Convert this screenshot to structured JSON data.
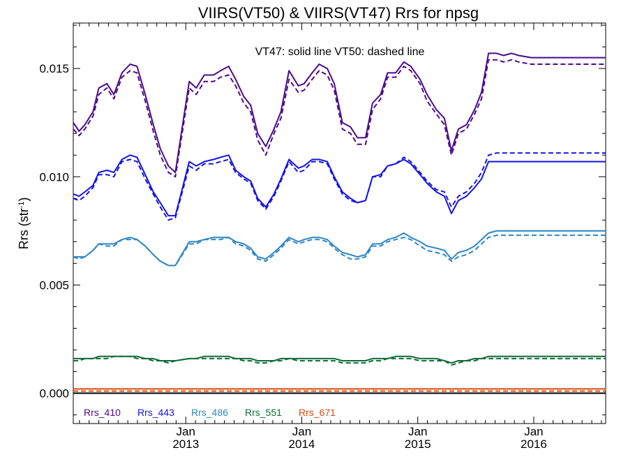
{
  "chart_data": {
    "type": "line",
    "title": "VIIRS(VT50) & VIIRS(VT47)  Rrs for npsg",
    "subtitle": "VT47: solid line   VT50: dashed line",
    "ylabel": "Rrs (str",
    "ylabel_sup": "-1",
    "ylabel_close": ")",
    "ylim": [
      -0.0014,
      0.0171
    ],
    "xlim": [
      2012.03,
      2016.62
    ],
    "x_major_ticks": [
      {
        "x": 2013.0,
        "month": "Jan",
        "year": "2013"
      },
      {
        "x": 2014.0,
        "month": "Jan",
        "year": "2014"
      },
      {
        "x": 2015.0,
        "month": "Jan",
        "year": "2015"
      },
      {
        "x": 2016.0,
        "month": "Jan",
        "year": "2016"
      }
    ],
    "y_ticks": [
      {
        "value": 0.0,
        "label": "0.000"
      },
      {
        "value": 0.005,
        "label": "0.005"
      },
      {
        "value": 0.01,
        "label": "0.010"
      },
      {
        "value": 0.015,
        "label": "0.015"
      }
    ],
    "zero_line": true,
    "grid": false,
    "legend_position": "bottom-left",
    "colors": {
      "Rrs_410": "#4B0A8C",
      "Rrs_443": "#1414E6",
      "Rrs_486": "#2E86C6",
      "Rrs_551": "#0D6B36",
      "Rrs_671": "#D94A12"
    },
    "x": [
      2012.03,
      2012.08,
      2012.13,
      2012.2,
      2012.25,
      2012.32,
      2012.38,
      2012.45,
      2012.52,
      2012.58,
      2012.65,
      2012.72,
      2012.78,
      2012.85,
      2012.91,
      2013.03,
      2013.09,
      2013.16,
      2013.24,
      2013.3,
      2013.37,
      2013.43,
      2013.5,
      2013.56,
      2013.62,
      2013.69,
      2013.76,
      2013.82,
      2013.89,
      2013.97,
      2014.02,
      2014.09,
      2014.15,
      2014.22,
      2014.28,
      2014.35,
      2014.42,
      2014.48,
      2014.55,
      2014.61,
      2014.68,
      2014.74,
      2014.81,
      2014.88,
      2014.94,
      2015.02,
      2015.08,
      2015.16,
      2015.23,
      2015.29,
      2015.35,
      2015.42,
      2015.49,
      2015.55,
      2015.61,
      2015.68,
      2015.74,
      2015.81,
      2015.87,
      2015.98,
      2016.02,
      2016.09,
      2016.16,
      2016.23,
      2016.29,
      2016.37,
      2016.42,
      2016.5,
      2016.55,
      2016.62
    ],
    "series": [
      {
        "name": "Rrs_410",
        "style": "solid",
        "values": [
          0.0125,
          0.0121,
          0.0124,
          0.013,
          0.0141,
          0.0143,
          0.0138,
          0.0148,
          0.0152,
          0.0151,
          0.0138,
          0.0124,
          0.0113,
          0.0105,
          0.0102,
          0.0144,
          0.0141,
          0.0147,
          0.0147,
          0.0149,
          0.0151,
          0.0145,
          0.0137,
          0.0133,
          0.012,
          0.0114,
          0.0122,
          0.013,
          0.0149,
          0.0142,
          0.0143,
          0.0148,
          0.0152,
          0.015,
          0.0143,
          0.0125,
          0.0123,
          0.0118,
          0.0118,
          0.0134,
          0.0138,
          0.0148,
          0.0148,
          0.0153,
          0.0151,
          0.0145,
          0.0138,
          0.0131,
          0.0127,
          0.0112,
          0.0122,
          0.0124,
          0.0131,
          0.0139,
          0.0157,
          0.0157,
          0.0156,
          0.0157,
          0.0156,
          0.0155,
          0.0155,
          0.0155,
          0.0155,
          0.0155,
          0.0155,
          0.0155,
          0.0155,
          0.0155,
          0.0155,
          0.0155
        ]
      },
      {
        "name": "Rrs_410",
        "style": "dashed",
        "values": [
          0.0122,
          0.0119,
          0.0122,
          0.0128,
          0.0138,
          0.0141,
          0.0136,
          0.0146,
          0.0149,
          0.0148,
          0.0135,
          0.0121,
          0.011,
          0.0102,
          0.01,
          0.0141,
          0.0138,
          0.0144,
          0.0144,
          0.0146,
          0.0147,
          0.0142,
          0.0134,
          0.013,
          0.0117,
          0.011,
          0.012,
          0.0127,
          0.0145,
          0.0139,
          0.014,
          0.0145,
          0.0149,
          0.0147,
          0.014,
          0.0122,
          0.012,
          0.0115,
          0.0115,
          0.0131,
          0.0136,
          0.0146,
          0.0146,
          0.0151,
          0.0149,
          0.0143,
          0.0135,
          0.0129,
          0.0124,
          0.011,
          0.012,
          0.0122,
          0.0129,
          0.0136,
          0.0154,
          0.0154,
          0.0153,
          0.0154,
          0.0153,
          0.0152,
          0.0152,
          0.0152,
          0.0152,
          0.0152,
          0.0152,
          0.0152,
          0.0152,
          0.0152,
          0.0152,
          0.0152
        ]
      },
      {
        "name": "Rrs_443",
        "style": "solid",
        "values": [
          0.0092,
          0.0091,
          0.0093,
          0.0096,
          0.0102,
          0.0103,
          0.0102,
          0.0108,
          0.011,
          0.0109,
          0.0101,
          0.0093,
          0.0088,
          0.0082,
          0.0082,
          0.0107,
          0.0105,
          0.0107,
          0.0108,
          0.0109,
          0.011,
          0.0103,
          0.01,
          0.0098,
          0.009,
          0.0086,
          0.0092,
          0.0099,
          0.0108,
          0.0104,
          0.0105,
          0.0108,
          0.0108,
          0.0107,
          0.01,
          0.0093,
          0.009,
          0.0088,
          0.0089,
          0.01,
          0.0101,
          0.0105,
          0.0106,
          0.0108,
          0.0106,
          0.0101,
          0.0097,
          0.0093,
          0.0091,
          0.0083,
          0.0089,
          0.0091,
          0.0095,
          0.0099,
          0.0107,
          0.0107,
          0.0107,
          0.0107,
          0.0107,
          0.0107,
          0.0107,
          0.0107,
          0.0107,
          0.0107,
          0.0107,
          0.0107,
          0.0107,
          0.0107,
          0.0107,
          0.0107
        ]
      },
      {
        "name": "Rrs_443",
        "style": "dashed",
        "values": [
          0.009,
          0.0089,
          0.0091,
          0.0095,
          0.0101,
          0.0101,
          0.01,
          0.0107,
          0.0108,
          0.0107,
          0.0099,
          0.0092,
          0.0086,
          0.008,
          0.0081,
          0.0105,
          0.0103,
          0.0106,
          0.0106,
          0.0107,
          0.0108,
          0.0102,
          0.0099,
          0.0097,
          0.0089,
          0.0085,
          0.0091,
          0.0098,
          0.0107,
          0.0102,
          0.0103,
          0.0107,
          0.0107,
          0.0106,
          0.0099,
          0.0092,
          0.0089,
          0.0088,
          0.0089,
          0.01,
          0.01,
          0.0105,
          0.0106,
          0.0109,
          0.0107,
          0.0102,
          0.0098,
          0.0094,
          0.0093,
          0.0086,
          0.0091,
          0.0093,
          0.0097,
          0.0102,
          0.011,
          0.0111,
          0.0111,
          0.0111,
          0.0111,
          0.0111,
          0.0111,
          0.0111,
          0.0111,
          0.0111,
          0.0111,
          0.0111,
          0.0111,
          0.0111,
          0.0111,
          0.0111
        ]
      },
      {
        "name": "Rrs_486",
        "style": "solid",
        "values": [
          0.0063,
          0.0063,
          0.0063,
          0.0066,
          0.0069,
          0.0069,
          0.0069,
          0.0071,
          0.0072,
          0.0071,
          0.0068,
          0.0064,
          0.0061,
          0.0059,
          0.0059,
          0.007,
          0.007,
          0.0071,
          0.0072,
          0.0072,
          0.0072,
          0.007,
          0.0069,
          0.0067,
          0.0063,
          0.0062,
          0.0065,
          0.0068,
          0.0072,
          0.007,
          0.0071,
          0.0072,
          0.0072,
          0.0071,
          0.0068,
          0.0065,
          0.0064,
          0.0063,
          0.0064,
          0.0069,
          0.0069,
          0.0071,
          0.0072,
          0.0074,
          0.0072,
          0.007,
          0.0068,
          0.0067,
          0.0066,
          0.0062,
          0.0065,
          0.0066,
          0.0068,
          0.0071,
          0.0074,
          0.0075,
          0.0075,
          0.0075,
          0.0075,
          0.0075,
          0.0075,
          0.0075,
          0.0075,
          0.0075,
          0.0075,
          0.0075,
          0.0075,
          0.0075,
          0.0075,
          0.0075
        ]
      },
      {
        "name": "Rrs_486",
        "style": "dashed",
        "values": [
          0.0063,
          0.0062,
          0.0063,
          0.0066,
          0.0069,
          0.0068,
          0.0068,
          0.0071,
          0.0071,
          0.0071,
          0.0068,
          0.0064,
          0.0061,
          0.0059,
          0.0059,
          0.0069,
          0.0069,
          0.0071,
          0.0071,
          0.0071,
          0.0072,
          0.0069,
          0.0068,
          0.0066,
          0.0062,
          0.0061,
          0.0064,
          0.0067,
          0.0071,
          0.0069,
          0.007,
          0.0071,
          0.0071,
          0.007,
          0.0067,
          0.0064,
          0.0062,
          0.0062,
          0.0063,
          0.0068,
          0.0068,
          0.007,
          0.0071,
          0.0072,
          0.0071,
          0.0068,
          0.0066,
          0.0065,
          0.0064,
          0.0061,
          0.0063,
          0.0064,
          0.0066,
          0.0069,
          0.0072,
          0.0073,
          0.0073,
          0.0073,
          0.0073,
          0.0073,
          0.0073,
          0.0073,
          0.0073,
          0.0073,
          0.0073,
          0.0073,
          0.0073,
          0.0073,
          0.0073,
          0.0073
        ]
      },
      {
        "name": "Rrs_551",
        "style": "solid",
        "values": [
          0.0016,
          0.0016,
          0.0016,
          0.0016,
          0.0017,
          0.0017,
          0.0017,
          0.0017,
          0.0017,
          0.0017,
          0.0016,
          0.0016,
          0.0015,
          0.0015,
          0.0015,
          0.0016,
          0.0016,
          0.0017,
          0.0017,
          0.0017,
          0.0017,
          0.0016,
          0.0016,
          0.0016,
          0.0015,
          0.0015,
          0.0015,
          0.0016,
          0.0016,
          0.0016,
          0.0016,
          0.0016,
          0.0016,
          0.0016,
          0.0016,
          0.0015,
          0.0015,
          0.0015,
          0.0015,
          0.0016,
          0.0016,
          0.0016,
          0.0017,
          0.0017,
          0.0017,
          0.0016,
          0.0016,
          0.0016,
          0.0015,
          0.0014,
          0.0015,
          0.0015,
          0.0016,
          0.0016,
          0.0017,
          0.0017,
          0.0017,
          0.0017,
          0.0017,
          0.0017,
          0.0017,
          0.0017,
          0.0017,
          0.0017,
          0.0017,
          0.0017,
          0.0017,
          0.0017,
          0.0017,
          0.0017
        ]
      },
      {
        "name": "Rrs_551",
        "style": "dashed",
        "values": [
          0.0015,
          0.0015,
          0.0016,
          0.0016,
          0.0016,
          0.0016,
          0.0017,
          0.0017,
          0.0017,
          0.0016,
          0.0016,
          0.0015,
          0.0015,
          0.0014,
          0.0015,
          0.0016,
          0.0016,
          0.0016,
          0.0016,
          0.0016,
          0.0016,
          0.0016,
          0.0015,
          0.0015,
          0.0014,
          0.0014,
          0.0015,
          0.0015,
          0.0016,
          0.0015,
          0.0015,
          0.0015,
          0.0015,
          0.0015,
          0.0015,
          0.0014,
          0.0014,
          0.0014,
          0.0014,
          0.0015,
          0.0015,
          0.0016,
          0.0016,
          0.0016,
          0.0016,
          0.0015,
          0.0015,
          0.0015,
          0.0015,
          0.0013,
          0.0014,
          0.0015,
          0.0015,
          0.0016,
          0.0016,
          0.0016,
          0.0016,
          0.0016,
          0.0016,
          0.0016,
          0.0016,
          0.0016,
          0.0016,
          0.0016,
          0.0016,
          0.0016,
          0.0016,
          0.0016,
          0.0016,
          0.0016
        ]
      },
      {
        "name": "Rrs_671",
        "style": "solid",
        "values": [
          0.0002,
          0.0002,
          0.0002,
          0.0002,
          0.0002,
          0.0002,
          0.0002,
          0.0002,
          0.0002,
          0.0002,
          0.0002,
          0.0002,
          0.0002,
          0.0002,
          0.0002,
          0.0002,
          0.0002,
          0.0002,
          0.0002,
          0.0002,
          0.0002,
          0.0002,
          0.0002,
          0.0002,
          0.0002,
          0.0002,
          0.0002,
          0.0002,
          0.0002,
          0.0002,
          0.0002,
          0.0002,
          0.0002,
          0.0002,
          0.0002,
          0.0002,
          0.0002,
          0.0002,
          0.0002,
          0.0002,
          0.0002,
          0.0002,
          0.0002,
          0.0002,
          0.0002,
          0.0002,
          0.0002,
          0.0002,
          0.0002,
          0.0002,
          0.0002,
          0.0002,
          0.0002,
          0.0002,
          0.0002,
          0.0002,
          0.0002,
          0.0002,
          0.0002,
          0.0002,
          0.0002,
          0.0002,
          0.0002,
          0.0002,
          0.0002,
          0.0002,
          0.0002,
          0.0002,
          0.0002,
          0.0002
        ]
      },
      {
        "name": "Rrs_671",
        "style": "dashed",
        "values": [
          0.0001,
          0.0001,
          0.0001,
          0.0001,
          0.0001,
          0.0001,
          0.0001,
          0.0001,
          0.0001,
          0.0001,
          0.0001,
          0.0001,
          0.0001,
          0.0001,
          0.0001,
          0.0001,
          0.0001,
          0.0001,
          0.0001,
          0.0001,
          0.0001,
          0.0001,
          0.0001,
          0.0001,
          0.0001,
          0.0001,
          0.0001,
          0.0001,
          0.0001,
          0.0001,
          0.0001,
          0.0001,
          0.0001,
          0.0001,
          0.0001,
          0.0001,
          0.0001,
          0.0001,
          0.0001,
          0.0001,
          0.0001,
          0.0001,
          0.0001,
          0.0001,
          0.0001,
          0.0001,
          0.0001,
          0.0001,
          0.0001,
          0.0001,
          0.0001,
          0.0001,
          0.0001,
          0.0001,
          0.0001,
          0.0001,
          0.0001,
          0.0001,
          0.0001,
          0.0001,
          0.0001,
          0.0001,
          0.0001,
          0.0001,
          0.0001,
          0.0001,
          0.0001,
          0.0001,
          0.0001,
          0.0001
        ]
      }
    ],
    "legend": [
      {
        "label": "Rrs_410",
        "color": "#4B0A8C"
      },
      {
        "label": "Rrs_443",
        "color": "#1414E6"
      },
      {
        "label": "Rrs_486",
        "color": "#2E86C6"
      },
      {
        "label": "Rrs_551",
        "color": "#0D6B36"
      },
      {
        "label": "Rrs_671",
        "color": "#D94A12"
      }
    ]
  }
}
